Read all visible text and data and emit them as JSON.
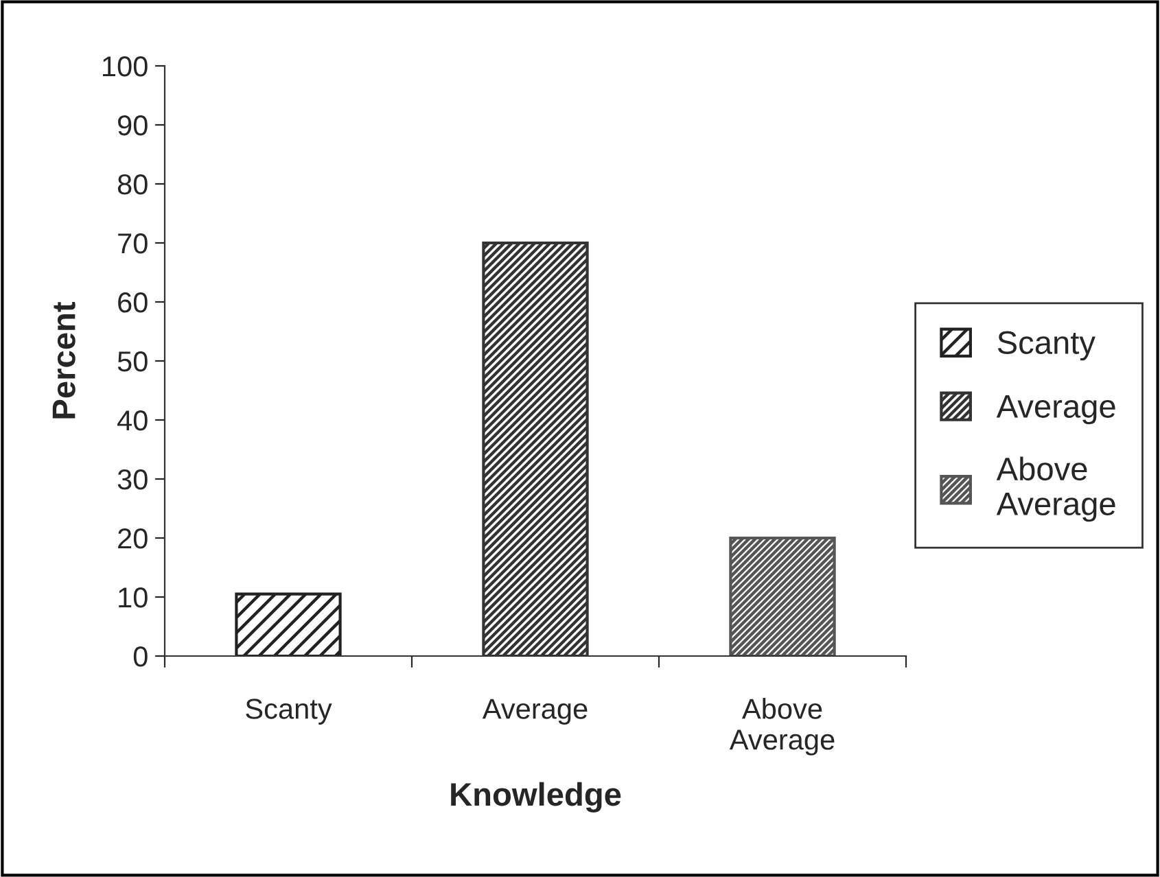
{
  "chart_data": {
    "type": "bar",
    "xlabel": "Knowledge",
    "ylabel": "Percent",
    "categories": [
      "Scanty",
      "Average",
      "Above\nAverage"
    ],
    "series": [
      {
        "name": "Scanty",
        "color": "#222222",
        "values": [
          10.5,
          null,
          null
        ]
      },
      {
        "name": "Average",
        "color": "#333333",
        "values": [
          null,
          70,
          null
        ]
      },
      {
        "name": "Above\nAverage",
        "color": "#555555",
        "values": [
          null,
          null,
          20
        ]
      }
    ],
    "ylim": [
      0,
      100
    ],
    "yticks": [
      0,
      10,
      20,
      30,
      40,
      50,
      60,
      70,
      80,
      90,
      100
    ],
    "grid": false,
    "legend": "right"
  }
}
